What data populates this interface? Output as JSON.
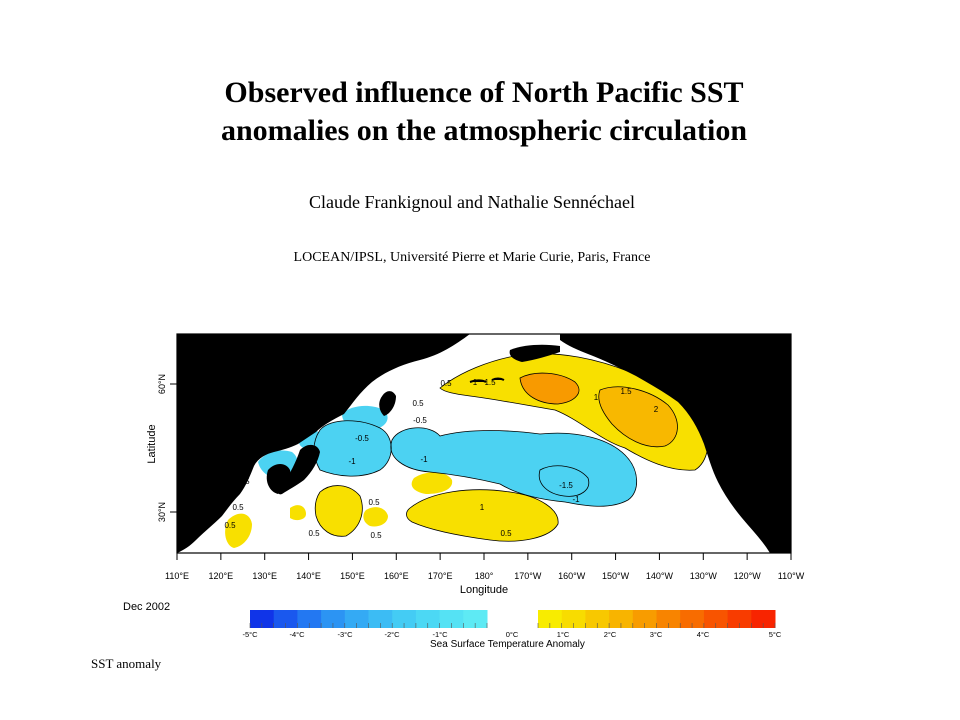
{
  "slide": {
    "title_line1": "Observed influence of North Pacific SST",
    "title_line2": "anomalies on the atmospheric circulation",
    "authors": "Claude Frankignoul and Nathalie Sennéchael",
    "affiliation": "LOCEAN/IPSL, Université Pierre et Marie Curie, Paris, France",
    "footer_label": "SST anomaly"
  },
  "map": {
    "date_label": "Dec 2002",
    "x_axis_label": "Longitude",
    "y_axis_label": "Latitude",
    "lon_ticks": [
      "110°E",
      "120°E",
      "130°E",
      "140°E",
      "150°E",
      "160°E",
      "170°E",
      "180°",
      "170°W",
      "160°W",
      "150°W",
      "140°W",
      "130°W",
      "120°W",
      "110°W"
    ],
    "lat_ticks": [
      "60°N",
      "30°N"
    ],
    "contour_labels": [
      {
        "text": "1"
      },
      {
        "text": "1.5"
      },
      {
        "text": "0.5"
      },
      {
        "text": "1"
      },
      {
        "text": "1.5"
      },
      {
        "text": "2"
      },
      {
        "text": "1"
      },
      {
        "text": "0.5"
      },
      {
        "text": "-0.5"
      },
      {
        "text": "-0.5"
      },
      {
        "text": "-1"
      },
      {
        "text": "-1"
      },
      {
        "text": "-1.5"
      },
      {
        "text": "-1"
      },
      {
        "text": "-0.5"
      },
      {
        "text": "0.5"
      },
      {
        "text": "-0.5"
      },
      {
        "text": "0.5"
      },
      {
        "text": "0.5"
      },
      {
        "text": "0.5"
      },
      {
        "text": "0.5"
      },
      {
        "text": "0.5"
      },
      {
        "text": "1"
      },
      {
        "text": "0.5"
      }
    ],
    "colors": {
      "land": "#000000",
      "ocean_neutral": "#ffffff",
      "frame": "#000000"
    }
  },
  "colorbar": {
    "title": "Sea Surface Temperature Anomaly",
    "tick_labels": [
      "-5°C",
      "-4°C",
      "-3°C",
      "-2°C",
      "-1°C",
      "0°C",
      "1°C",
      "2°C",
      "3°C",
      "4°C",
      "5°C"
    ],
    "negative_colors": [
      "#1034e8",
      "#1a58ee",
      "#2378f2",
      "#2c94f3",
      "#34aaf4",
      "#3cbcf4",
      "#44ccf4",
      "#4cd8f4",
      "#55e2f4",
      "#5eeaf4"
    ],
    "positive_colors": [
      "#f8ec00",
      "#f8dc00",
      "#f8c800",
      "#f8b400",
      "#f89c00",
      "#f88400",
      "#f86c00",
      "#f85400",
      "#f83c00",
      "#f82400"
    ]
  }
}
